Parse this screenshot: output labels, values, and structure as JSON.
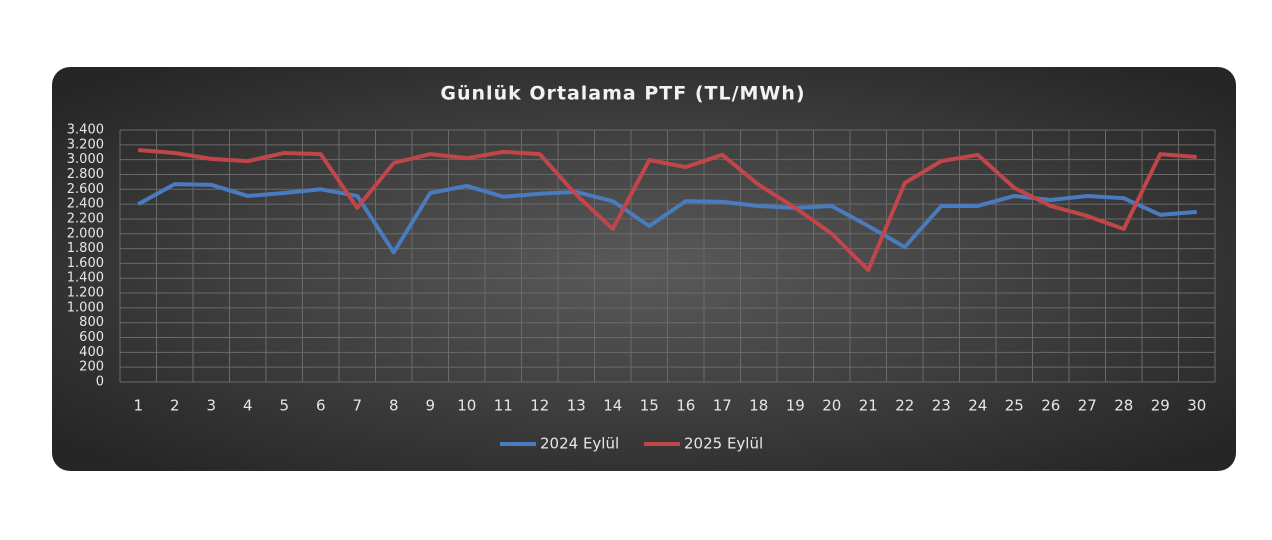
{
  "chart_data": {
    "type": "line",
    "title": "Günlük Ortalama PTF (TL/MWh)",
    "categories": [
      "1",
      "2",
      "3",
      "4",
      "5",
      "6",
      "7",
      "8",
      "9",
      "10",
      "11",
      "12",
      "13",
      "14",
      "15",
      "16",
      "17",
      "18",
      "19",
      "20",
      "21",
      "22",
      "23",
      "24",
      "25",
      "26",
      "27",
      "28",
      "29",
      "30"
    ],
    "series": [
      {
        "name": "2024 Eylül",
        "color": "#4a7bbf",
        "values": [
          2400,
          2670,
          2660,
          2510,
          2550,
          2600,
          2510,
          1750,
          2550,
          2645,
          2500,
          2540,
          2565,
          2440,
          2105,
          2440,
          2430,
          2375,
          2350,
          2375,
          2105,
          1820,
          2375,
          2375,
          2510,
          2455,
          2510,
          2480,
          2255,
          2295
        ]
      },
      {
        "name": "2025 Eylül",
        "color": "#c0464a",
        "values": [
          3130,
          3090,
          3010,
          2980,
          3090,
          3075,
          2350,
          2955,
          3075,
          3020,
          3105,
          3075,
          2525,
          2065,
          2995,
          2900,
          3065,
          2660,
          2350,
          2000,
          1510,
          2685,
          2980,
          3065,
          2620,
          2375,
          2240,
          2065,
          3075,
          3035
        ]
      }
    ],
    "ylim": [
      0,
      3400
    ],
    "yticks": [
      0,
      200,
      400,
      600,
      800,
      {
        "value": 1000,
        "label": "1.000"
      },
      {
        "value": 1200,
        "label": "1.200"
      },
      {
        "value": 1400,
        "label": "1.400"
      },
      {
        "value": 1600,
        "label": "1.600"
      },
      {
        "value": 1800,
        "label": "1.800"
      },
      {
        "value": 2000,
        "label": "2.000"
      },
      {
        "value": 2200,
        "label": "2.200"
      },
      {
        "value": 2400,
        "label": "2.400"
      },
      {
        "value": 2600,
        "label": "2.600"
      },
      {
        "value": 2800,
        "label": "2.800"
      },
      {
        "value": 3000,
        "label": "3.000"
      },
      {
        "value": 3200,
        "label": "3.200"
      },
      {
        "value": 3400,
        "label": "3.400"
      }
    ],
    "grid": true,
    "legend": "bottom"
  }
}
